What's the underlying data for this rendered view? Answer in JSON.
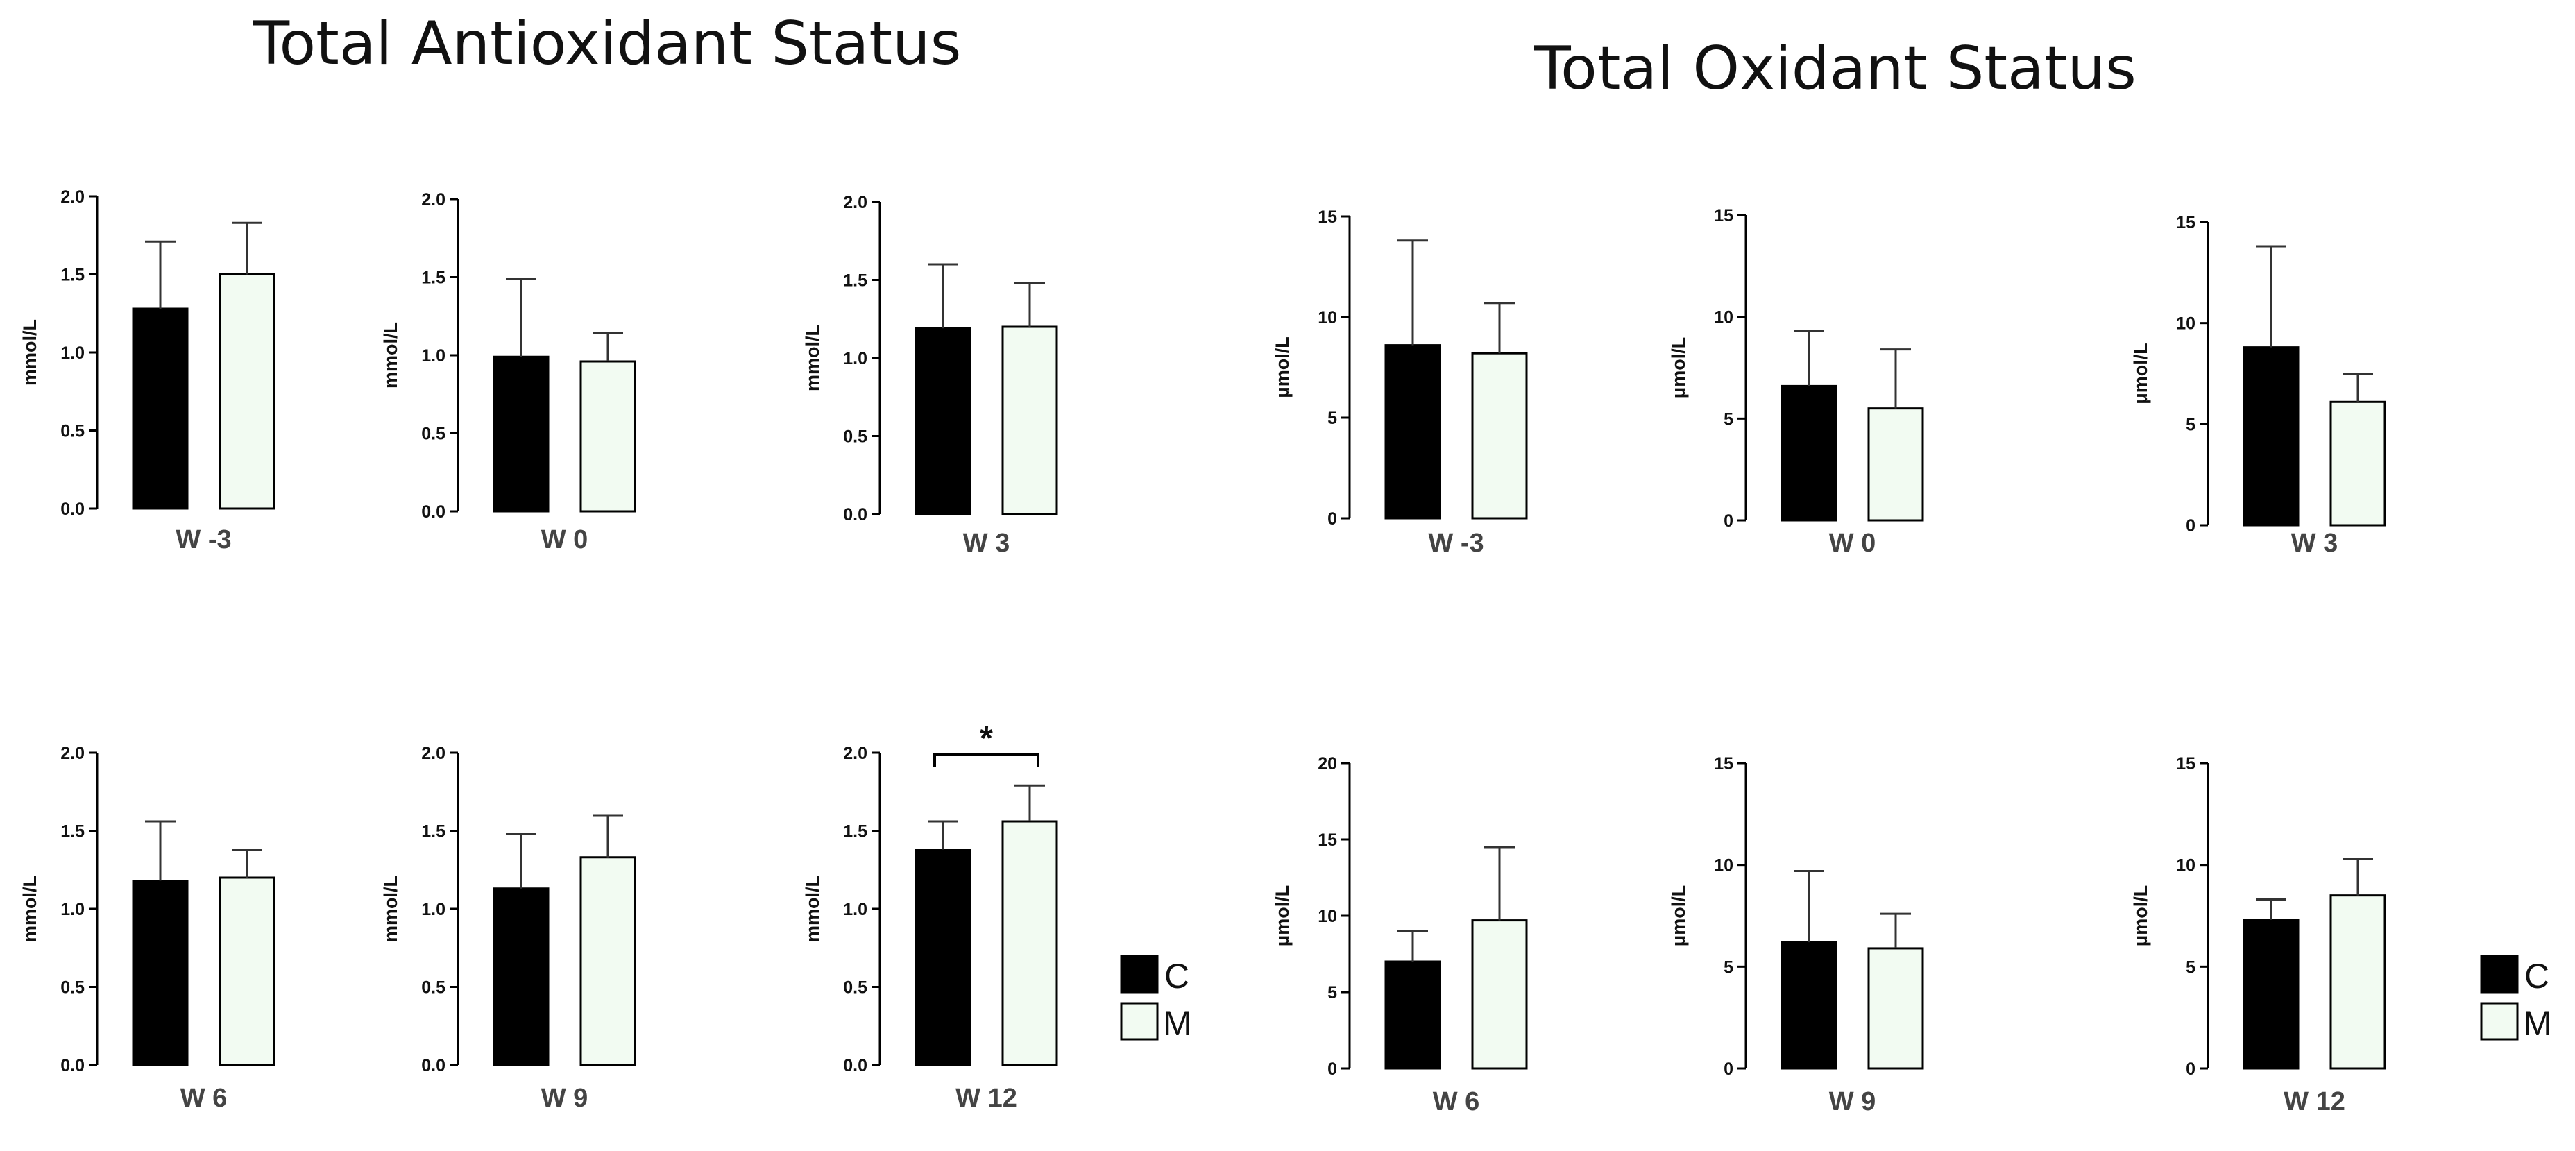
{
  "titles": {
    "tas": "Total Antioxidant Status",
    "tos": "Total Oxidant Status"
  },
  "legend": {
    "c": "C",
    "m": "M"
  },
  "colors": {
    "C": "#000000",
    "M": "#f2fbf2",
    "axis": "#000000"
  },
  "chart_data": [
    {
      "type": "bar",
      "panel": "tas-w-3",
      "xlabel": "W -3",
      "ylabel": "mmol/L",
      "ylim": [
        0,
        2.0
      ],
      "yticks": [
        "0.0",
        "0.5",
        "1.0",
        "1.5",
        "2.0"
      ],
      "categories": [
        "C",
        "M"
      ],
      "values": [
        1.28,
        1.5
      ],
      "errors": [
        0.43,
        0.33
      ]
    },
    {
      "type": "bar",
      "panel": "tas-w0",
      "xlabel": "W 0",
      "ylabel": "mmol/L",
      "ylim": [
        0,
        2.0
      ],
      "yticks": [
        "0.0",
        "0.5",
        "1.0",
        "1.5",
        "2.0"
      ],
      "categories": [
        "C",
        "M"
      ],
      "values": [
        0.99,
        0.96
      ],
      "errors": [
        0.5,
        0.18
      ]
    },
    {
      "type": "bar",
      "panel": "tas-w3",
      "xlabel": "W 3",
      "ylabel": "mmol/L",
      "ylim": [
        0,
        2.0
      ],
      "yticks": [
        "0.0",
        "0.5",
        "1.0",
        "1.5",
        "2.0"
      ],
      "categories": [
        "C",
        "M"
      ],
      "values": [
        1.19,
        1.2
      ],
      "errors": [
        0.41,
        0.28
      ]
    },
    {
      "type": "bar",
      "panel": "tos-w-3",
      "xlabel": "W -3",
      "ylabel": "μmol/L",
      "ylim": [
        0,
        15
      ],
      "yticks": [
        "0",
        "5",
        "10",
        "15"
      ],
      "categories": [
        "C",
        "M"
      ],
      "values": [
        8.6,
        8.2
      ],
      "errors": [
        5.2,
        2.5
      ]
    },
    {
      "type": "bar",
      "panel": "tos-w0",
      "xlabel": "W 0",
      "ylabel": "μmol/L",
      "ylim": [
        0,
        15
      ],
      "yticks": [
        "0",
        "5",
        "10",
        "15"
      ],
      "categories": [
        "C",
        "M"
      ],
      "values": [
        6.6,
        5.5
      ],
      "errors": [
        2.7,
        2.9
      ]
    },
    {
      "type": "bar",
      "panel": "tos-w3",
      "xlabel": "W 3",
      "ylabel": "μmol/L",
      "ylim": [
        0,
        15
      ],
      "yticks": [
        "0",
        "5",
        "10",
        "15"
      ],
      "categories": [
        "C",
        "M"
      ],
      "values": [
        8.8,
        6.1
      ],
      "errors": [
        5.0,
        1.4
      ]
    },
    {
      "type": "bar",
      "panel": "tas-w6",
      "xlabel": "W 6",
      "ylabel": "mmol/L",
      "ylim": [
        0,
        2.0
      ],
      "yticks": [
        "0.0",
        "0.5",
        "1.0",
        "1.5",
        "2.0"
      ],
      "categories": [
        "C",
        "M"
      ],
      "values": [
        1.18,
        1.2
      ],
      "errors": [
        0.38,
        0.18
      ]
    },
    {
      "type": "bar",
      "panel": "tas-w9",
      "xlabel": "W 9",
      "ylabel": "mmol/L",
      "ylim": [
        0,
        2.0
      ],
      "yticks": [
        "0.0",
        "0.5",
        "1.0",
        "1.5",
        "2.0"
      ],
      "categories": [
        "C",
        "M"
      ],
      "values": [
        1.13,
        1.33
      ],
      "errors": [
        0.35,
        0.27
      ]
    },
    {
      "type": "bar",
      "panel": "tas-w12",
      "xlabel": "W 12",
      "ylabel": "mmol/L",
      "ylim": [
        0,
        2.0
      ],
      "yticks": [
        "0.0",
        "0.5",
        "1.0",
        "1.5",
        "2.0"
      ],
      "categories": [
        "C",
        "M"
      ],
      "values": [
        1.38,
        1.56
      ],
      "errors": [
        0.18,
        0.23
      ],
      "significance": "*"
    },
    {
      "type": "bar",
      "panel": "tos-w6",
      "xlabel": "W 6",
      "ylabel": "μmol/L",
      "ylim": [
        0,
        20
      ],
      "yticks": [
        "0",
        "5",
        "10",
        "15",
        "20"
      ],
      "categories": [
        "C",
        "M"
      ],
      "values": [
        7.0,
        9.7
      ],
      "errors": [
        2.0,
        4.8
      ]
    },
    {
      "type": "bar",
      "panel": "tos-w9",
      "xlabel": "W 9",
      "ylabel": "μmol/L",
      "ylim": [
        0,
        15
      ],
      "yticks": [
        "0",
        "5",
        "10",
        "15"
      ],
      "categories": [
        "C",
        "M"
      ],
      "values": [
        6.2,
        5.9
      ],
      "errors": [
        3.5,
        1.7
      ]
    },
    {
      "type": "bar",
      "panel": "tos-w12",
      "xlabel": "W 12",
      "ylabel": "μmol/L",
      "ylim": [
        0,
        15
      ],
      "yticks": [
        "0",
        "5",
        "10",
        "15"
      ],
      "categories": [
        "C",
        "M"
      ],
      "values": [
        7.3,
        8.5
      ],
      "errors": [
        1.0,
        1.8
      ]
    }
  ]
}
